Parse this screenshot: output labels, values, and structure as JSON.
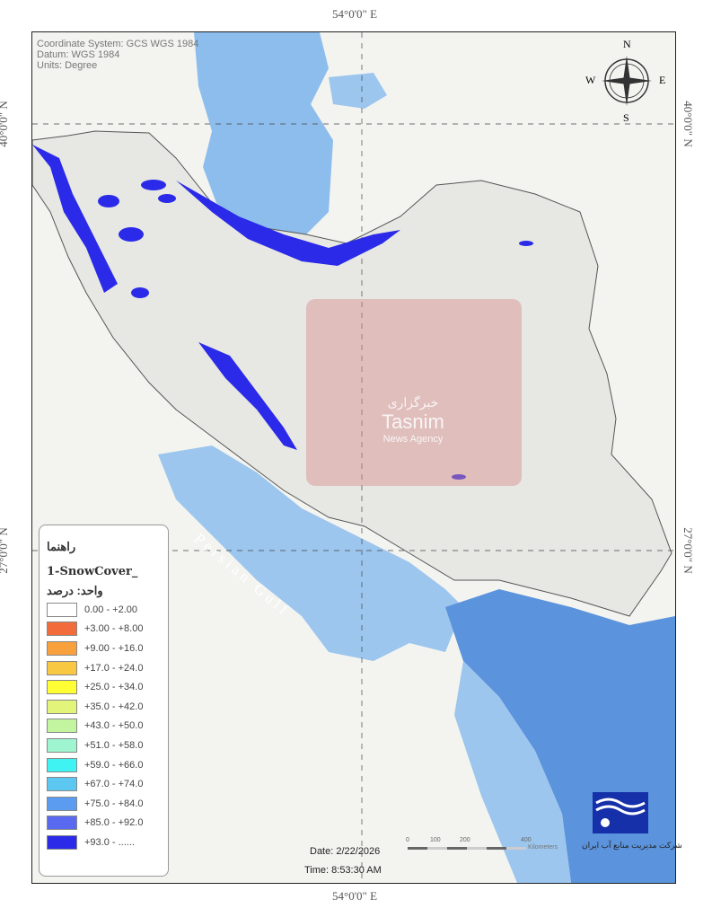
{
  "graticule": {
    "lon_top": "54°0'0\" E",
    "lon_bottom": "54°0'0\" E",
    "lat_upper_left": "40°0'0\" N",
    "lat_upper_right": "40°0'0\" N",
    "lat_lower_left": "27°0'0\" N",
    "lat_lower_right": "27°0'0\" N"
  },
  "metadata": {
    "coord_system": "Coordinate System: GCS WGS 1984",
    "datum": "Datum: WGS 1984",
    "units": "Units: Degree"
  },
  "compass": {
    "n": "N",
    "s": "S",
    "e": "E",
    "w": "W"
  },
  "labels": {
    "persian_gulf": "Persian Gulf"
  },
  "watermark": {
    "persian": "خبرگزاری",
    "name": "Tasnim",
    "sub": "News Agency"
  },
  "legend": {
    "title": "راهنما",
    "layer": "1-SnowCover_",
    "unit": "واحد: درصد",
    "items": [
      {
        "label": "0.00 - +2.00",
        "color": "#ffffff"
      },
      {
        "label": "+3.00 - +8.00",
        "color": "#f26b3a"
      },
      {
        "label": "+9.00 - +16.0",
        "color": "#f7a03c"
      },
      {
        "label": "+17.0 - +24.0",
        "color": "#f9c842"
      },
      {
        "label": "+25.0 - +34.0",
        "color": "#ffff33"
      },
      {
        "label": "+35.0 - +42.0",
        "color": "#e2f57a"
      },
      {
        "label": "+43.0 - +50.0",
        "color": "#c3f5a0"
      },
      {
        "label": "+51.0 - +58.0",
        "color": "#9ef5d0"
      },
      {
        "label": "+59.0 - +66.0",
        "color": "#3ff3f3"
      },
      {
        "label": "+67.0 - +74.0",
        "color": "#5cc8f2"
      },
      {
        "label": "+75.0 - +84.0",
        "color": "#5c9cf0"
      },
      {
        "label": "+85.0 - +92.0",
        "color": "#5a6af0"
      },
      {
        "label": "+93.0 - ......",
        "color": "#2a2ae8"
      }
    ]
  },
  "footer": {
    "date": "Date: 2/22/2026",
    "time": "Time: 8:53:30 AM"
  },
  "scale": {
    "ticks": [
      "0",
      "100",
      "200",
      "400"
    ],
    "unit": "Kilometers"
  },
  "agency_caption": "شرکت مدیریت منابع آب ایران",
  "colors": {
    "water": "#9cc6ee",
    "deep_water": "#5b93dc",
    "land": "#ececea",
    "snow": "#2a2ae8"
  }
}
